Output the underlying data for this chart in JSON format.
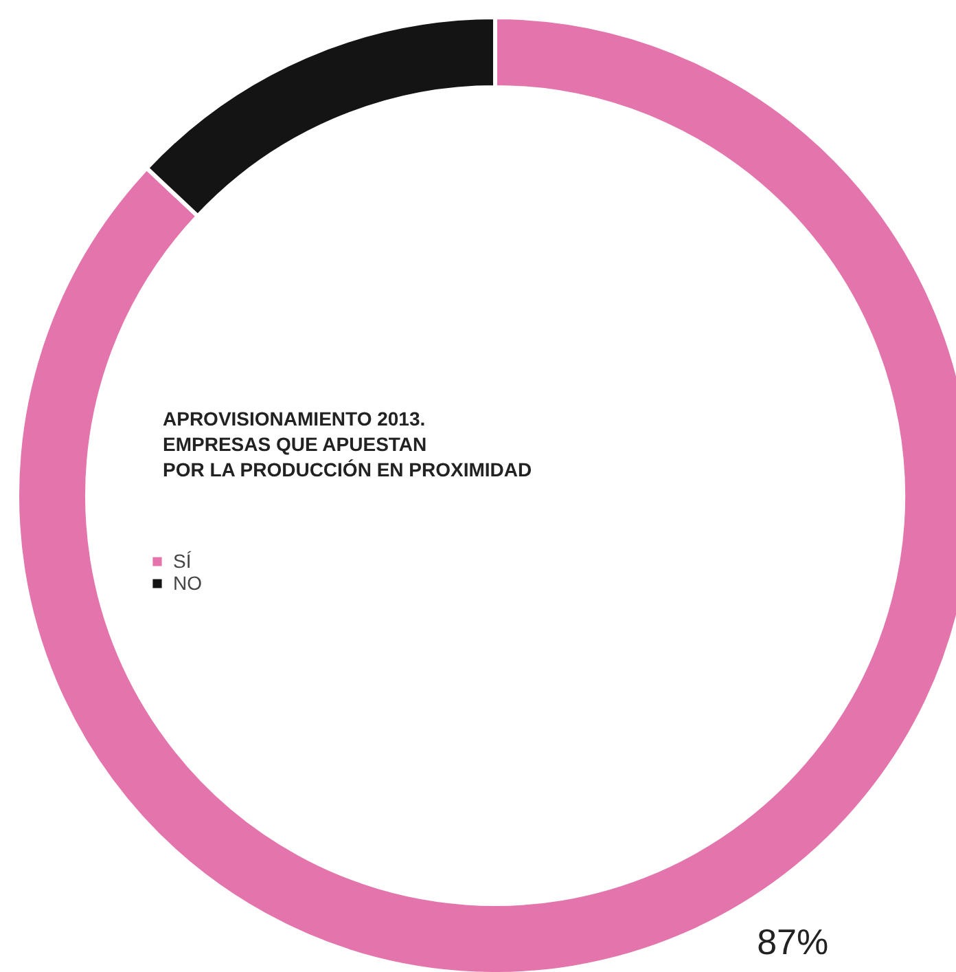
{
  "chart_data": {
    "type": "donut",
    "title": "APROVISIONAMIENTO 2013.\nEMPRESAS QUE APUESTAN\nPOR LA PRODUCCIÓN EN PROXIMIDAD",
    "categories": [
      "SÍ",
      "NO"
    ],
    "values": [
      87,
      13
    ],
    "colors": [
      "#e475ac",
      "#141414"
    ],
    "value_labels": [
      "87%",
      null
    ],
    "legend": "left"
  }
}
